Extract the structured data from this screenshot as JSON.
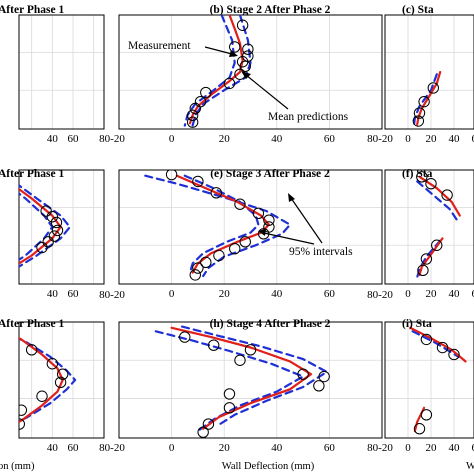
{
  "colors": {
    "mean": "#e0201b",
    "interval": "#1f2fd6",
    "measurement": "#000000",
    "grid": "#d9d9d9"
  },
  "x_tick_labels": [
    "-20",
    "0",
    "20",
    "40",
    "60",
    "80"
  ],
  "columns": [
    {
      "x": [
        -30,
        90
      ]
    },
    {
      "x": [
        -20,
        80
      ]
    },
    {
      "x": [
        -20,
        80
      ]
    }
  ],
  "chart_data": [
    {
      "type": "line",
      "title": "After Phase 1",
      "row": 0,
      "col": 0,
      "series": [
        {
          "role": "interval",
          "x": [
            -2,
            -3
          ],
          "y": [
            0.29,
            0.37
          ]
        },
        {
          "role": "interval",
          "x": [
            -5,
            -7
          ],
          "y": [
            0.3,
            0.4
          ]
        }
      ]
    },
    {
      "type": "line",
      "title": "(b) Stage 2 After Phase 2",
      "row": 0,
      "col": 1,
      "series": [
        {
          "role": "mean",
          "x": [
            22,
            24,
            26,
            27,
            26,
            22,
            15,
            10,
            8,
            7
          ],
          "y": [
            0.0,
            0.12,
            0.25,
            0.4,
            0.5,
            0.58,
            0.7,
            0.8,
            0.88,
            0.95
          ]
        },
        {
          "role": "interval",
          "x": [
            19,
            23,
            24,
            22,
            16,
            9,
            6,
            5
          ],
          "y": [
            0.0,
            0.22,
            0.42,
            0.55,
            0.66,
            0.78,
            0.88,
            0.97
          ]
        },
        {
          "role": "interval",
          "x": [
            26,
            29,
            30,
            28,
            20,
            12,
            9,
            8
          ],
          "y": [
            0.0,
            0.22,
            0.42,
            0.55,
            0.66,
            0.78,
            0.88,
            0.97
          ]
        },
        {
          "role": "measurement",
          "x": [
            27,
            24,
            29,
            29,
            27,
            28,
            26,
            22,
            13,
            11,
            9,
            8,
            8
          ],
          "y": [
            0.09,
            0.28,
            0.3,
            0.36,
            0.41,
            0.45,
            0.52,
            0.6,
            0.68,
            0.76,
            0.82,
            0.88,
            0.94
          ]
        }
      ],
      "annotations": [
        {
          "text": "Measurement"
        },
        {
          "text": "Mean predictions"
        }
      ]
    },
    {
      "type": "line",
      "title": "(c) Sta",
      "row": 0,
      "col": 2,
      "series": [
        {
          "role": "mean",
          "x": [
            28,
            25,
            18,
            12,
            9,
            8
          ],
          "y": [
            0.5,
            0.6,
            0.72,
            0.82,
            0.9,
            0.96
          ]
        },
        {
          "role": "interval",
          "x": [
            25,
            20,
            10,
            6,
            5
          ],
          "y": [
            0.52,
            0.66,
            0.8,
            0.9,
            0.98
          ]
        },
        {
          "role": "measurement",
          "x": [
            22,
            14,
            10,
            9
          ],
          "y": [
            0.64,
            0.76,
            0.86,
            0.93
          ]
        }
      ]
    },
    {
      "type": "line",
      "title": "After Phase 1",
      "row": 1,
      "col": 0,
      "series": [
        {
          "role": "mean",
          "x": [
            -10,
            20,
            40,
            48,
            40,
            20,
            -10
          ],
          "y": [
            0.05,
            0.25,
            0.4,
            0.5,
            0.6,
            0.75,
            0.92
          ]
        },
        {
          "role": "interval",
          "x": [
            -5,
            25,
            48,
            57,
            48,
            25,
            -5
          ],
          "y": [
            0.05,
            0.25,
            0.4,
            0.5,
            0.6,
            0.75,
            0.92
          ]
        },
        {
          "role": "interval",
          "x": [
            -15,
            14,
            32,
            40,
            32,
            14,
            -15
          ],
          "y": [
            0.05,
            0.25,
            0.4,
            0.5,
            0.6,
            0.75,
            0.92
          ]
        },
        {
          "role": "measurement",
          "x": [
            34,
            40,
            44,
            45,
            42,
            36,
            30
          ],
          "y": [
            0.36,
            0.41,
            0.46,
            0.53,
            0.58,
            0.63,
            0.68
          ]
        }
      ]
    },
    {
      "type": "line",
      "title": "(e) Stage 3 After Phase 2",
      "row": 1,
      "col": 1,
      "series": [
        {
          "role": "mean",
          "x": [
            2,
            12,
            25,
            34,
            37,
            34,
            25,
            15,
            10,
            8
          ],
          "y": [
            0.05,
            0.15,
            0.28,
            0.4,
            0.48,
            0.55,
            0.63,
            0.73,
            0.82,
            0.9
          ]
        },
        {
          "role": "interval",
          "x": [
            -10,
            2,
            20,
            36,
            45,
            42,
            32,
            20,
            14,
            12
          ],
          "y": [
            0.05,
            0.12,
            0.24,
            0.36,
            0.48,
            0.56,
            0.66,
            0.76,
            0.86,
            0.93
          ]
        },
        {
          "role": "interval",
          "x": [
            5,
            15,
            26,
            32,
            33,
            30,
            21,
            12,
            8,
            7
          ],
          "y": [
            0.05,
            0.15,
            0.28,
            0.4,
            0.48,
            0.55,
            0.63,
            0.73,
            0.82,
            0.9
          ]
        },
        {
          "role": "measurement",
          "x": [
            0,
            10,
            17,
            26,
            33,
            37,
            37,
            35,
            28,
            24,
            18,
            13,
            10,
            9
          ],
          "y": [
            0.04,
            0.1,
            0.2,
            0.3,
            0.38,
            0.44,
            0.5,
            0.56,
            0.63,
            0.69,
            0.75,
            0.81,
            0.86,
            0.92
          ]
        }
      ],
      "annotations": [
        {
          "text": "95% intervals"
        }
      ]
    },
    {
      "type": "line",
      "title": "(f) Sta",
      "row": 1,
      "col": 2,
      "series": [
        {
          "role": "mean",
          "x": [
            10,
            25,
            38,
            45
          ],
          "y": [
            0.06,
            0.16,
            0.28,
            0.4
          ]
        },
        {
          "role": "mean",
          "x": [
            30,
            20,
            12,
            10
          ],
          "y": [
            0.6,
            0.74,
            0.85,
            0.92
          ]
        },
        {
          "role": "interval",
          "x": [
            8,
            22,
            36,
            44
          ],
          "y": [
            0.1,
            0.22,
            0.34,
            0.46
          ]
        },
        {
          "role": "interval",
          "x": [
            28,
            16,
            10,
            8
          ],
          "y": [
            0.62,
            0.76,
            0.87,
            0.94
          ]
        },
        {
          "role": "measurement",
          "x": [
            12,
            20,
            34
          ],
          "y": [
            0.06,
            0.12,
            0.22
          ]
        },
        {
          "role": "measurement",
          "x": [
            25,
            16,
            13
          ],
          "y": [
            0.66,
            0.78,
            0.88
          ]
        }
      ]
    },
    {
      "type": "line",
      "title": "After Phase 1",
      "row": 2,
      "col": 0,
      "series": [
        {
          "role": "mean",
          "x": [
            -10,
            10,
            30,
            45,
            50,
            45,
            30,
            10,
            -10
          ],
          "y": [
            0.05,
            0.15,
            0.28,
            0.4,
            0.5,
            0.6,
            0.72,
            0.85,
            0.95
          ]
        },
        {
          "role": "interval",
          "x": [
            -6,
            16,
            38,
            54,
            62,
            54,
            38,
            16,
            -6
          ],
          "y": [
            0.08,
            0.18,
            0.3,
            0.42,
            0.5,
            0.58,
            0.7,
            0.82,
            0.92
          ]
        },
        {
          "role": "measurement",
          "x": [
            -4,
            20,
            40,
            50,
            48,
            30,
            10,
            8
          ],
          "y": [
            0.12,
            0.24,
            0.36,
            0.45,
            0.52,
            0.64,
            0.76,
            0.88
          ]
        }
      ]
    },
    {
      "type": "line",
      "title": "(h) Stage 4 After Phase 2",
      "row": 2,
      "col": 1,
      "series": [
        {
          "role": "mean",
          "x": [
            0,
            15,
            30,
            45,
            53,
            45,
            30,
            18,
            12
          ],
          "y": [
            0.05,
            0.13,
            0.22,
            0.34,
            0.45,
            0.58,
            0.7,
            0.82,
            0.92
          ]
        },
        {
          "role": "interval",
          "x": [
            -6,
            8,
            22,
            38,
            50,
            40,
            26,
            16,
            10
          ],
          "y": [
            0.08,
            0.16,
            0.25,
            0.36,
            0.47,
            0.6,
            0.72,
            0.84,
            0.94
          ]
        },
        {
          "role": "interval",
          "x": [
            4,
            18,
            34,
            50,
            59,
            50,
            36,
            24,
            17
          ],
          "y": [
            0.04,
            0.12,
            0.21,
            0.32,
            0.43,
            0.56,
            0.68,
            0.8,
            0.9
          ]
        },
        {
          "role": "measurement",
          "x": [
            5,
            16,
            30,
            26,
            50,
            58,
            56,
            22,
            22,
            14,
            12
          ],
          "y": [
            0.13,
            0.2,
            0.24,
            0.33,
            0.45,
            0.47,
            0.55,
            0.62,
            0.74,
            0.88,
            0.95
          ]
        }
      ]
    },
    {
      "type": "line",
      "title": "(i) Sta",
      "row": 2,
      "col": 2,
      "series": [
        {
          "role": "mean",
          "x": [
            2,
            20,
            38,
            50
          ],
          "y": [
            0.05,
            0.14,
            0.24,
            0.34
          ]
        },
        {
          "role": "mean",
          "x": [
            14,
            8,
            6
          ],
          "y": [
            0.74,
            0.86,
            0.94
          ]
        },
        {
          "role": "interval",
          "x": [
            4,
            24,
            44
          ],
          "y": [
            0.08,
            0.18,
            0.3
          ]
        },
        {
          "role": "measurement",
          "x": [
            16,
            30,
            40
          ],
          "y": [
            0.15,
            0.22,
            0.28
          ]
        },
        {
          "role": "measurement",
          "x": [
            16,
            10
          ],
          "y": [
            0.8,
            0.92
          ]
        }
      ]
    }
  ],
  "labels": {
    "xlabel_left": "on (mm)",
    "xlabel_mid": "Wall Deflection (mm)",
    "xlabel_right": "W"
  }
}
